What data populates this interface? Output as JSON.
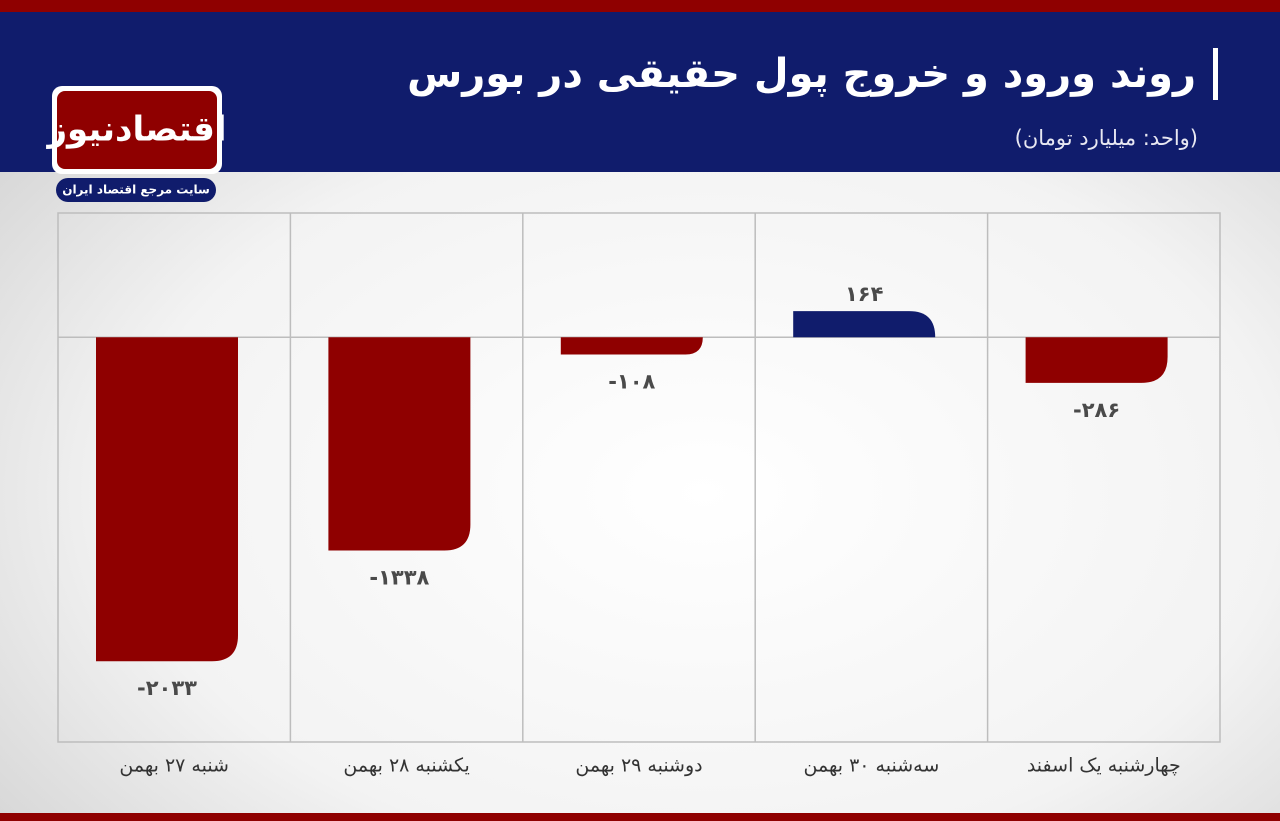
{
  "chart_data": {
    "type": "bar",
    "title": "روند ورود و خروج پول حقیقی در بورس",
    "subtitle": "(واحد: میلیارد تومان)",
    "categories": [
      "شنبه ۲۷ بهمن",
      "یکشنبه ۲۸ بهمن",
      "دوشنبه ۲۹ بهمن",
      "سه‌شنبه ۳۰ بهمن",
      "چهارشنبه یک اسفند"
    ],
    "values": [
      -2033,
      -1338,
      -108,
      164,
      -286
    ],
    "value_labels": [
      "-۲۰۳۳",
      "-۱۳۳۸",
      "-۱۰۸",
      "۱۶۴",
      "-۲۸۶"
    ],
    "color": "#8f0000",
    "positive_color": "#101c6c",
    "ylim": [
      -2540,
      780
    ]
  },
  "brand": {
    "name": "اقتصادنیوز",
    "tagline": "سایت مرجع اقتصاد ایران"
  }
}
